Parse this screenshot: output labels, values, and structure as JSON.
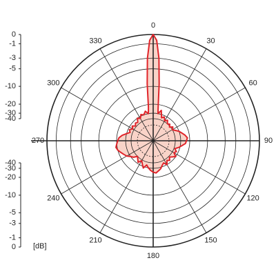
{
  "chart_data": {
    "type": "polar",
    "unit_label": "[dB]",
    "x": [
      0,
      2,
      4,
      6,
      8,
      10,
      15,
      20,
      25,
      30,
      35,
      40,
      45,
      50,
      55,
      60,
      65,
      70,
      75,
      80,
      85,
      90,
      95,
      100,
      105,
      110,
      115,
      120,
      125,
      130,
      135,
      140,
      145,
      150,
      155,
      160,
      165,
      170,
      175,
      180,
      185,
      190,
      195,
      200,
      205,
      210,
      215,
      220,
      225,
      230,
      235,
      240,
      245,
      250,
      255,
      260,
      265,
      270,
      275,
      280,
      285,
      290,
      295,
      300,
      305,
      310,
      315,
      320,
      325,
      330,
      335,
      340,
      345,
      350,
      352,
      354,
      356,
      358
    ],
    "series": [
      {
        "color": "#e0242a",
        "fill": "#f9d3c8",
        "values": [
          0,
          -0.6,
          -3,
          -9,
          -20,
          -30,
          -25,
          -35,
          -32,
          -38,
          -34,
          -40,
          -37,
          -42,
          -36,
          -40,
          -35,
          -30,
          -27,
          -24,
          -22,
          -23,
          -24,
          -28,
          -32,
          -38,
          -33,
          -36,
          -30,
          -34,
          -38,
          -33,
          -36,
          -30,
          -35,
          -32,
          -28,
          -26,
          -24,
          -25,
          -27,
          -30,
          -34,
          -28,
          -33,
          -38,
          -32,
          -36,
          -40,
          -33,
          -30,
          -26,
          -24,
          -22,
          -20,
          -19,
          -20,
          -21,
          -22,
          -25,
          -30,
          -35,
          -32,
          -37,
          -33,
          -38,
          -34,
          -36,
          -30,
          -33,
          -28,
          -30,
          -26,
          -30,
          -22,
          -9,
          -3,
          -0.6
        ]
      }
    ],
    "xticks": [
      0,
      30,
      60,
      90,
      120,
      150,
      180,
      210,
      240,
      270,
      300,
      330
    ],
    "ylim": [
      -60,
      0
    ],
    "yticks": [
      0,
      -1,
      -3,
      -5,
      -10,
      -20,
      -30,
      -40
    ]
  }
}
